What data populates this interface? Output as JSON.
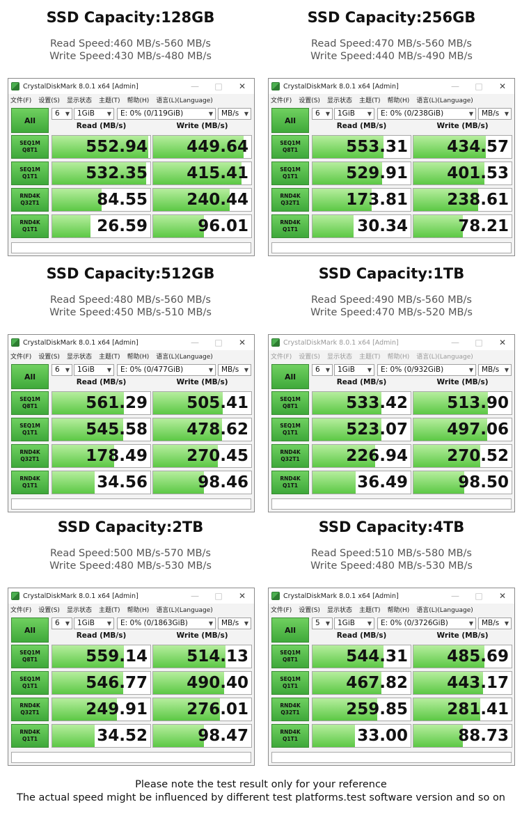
{
  "panels": [
    {
      "title": "SSD Capacity:128GB",
      "read": "Read Speed:460 MB/s-560 MB/s",
      "write": "Write Speed:430 MB/s-480 MB/s",
      "window": {
        "title": "CrystalDiskMark 8.0.1 x64 [Admin]",
        "active": true,
        "count": "6",
        "size": "1GiB",
        "drive": "E: 0% (0/119GiB)",
        "unit": "MB/s",
        "rows": [
          {
            "l1": "SEQ1M",
            "l2": "Q8T1",
            "read": "552.94",
            "write": "449.64",
            "rfill": 0.98,
            "wfill": 0.92
          },
          {
            "l1": "SEQ1M",
            "l2": "Q1T1",
            "read": "532.35",
            "write": "415.41",
            "rfill": 0.96,
            "wfill": 0.9
          },
          {
            "l1": "RND4K",
            "l2": "Q32T1",
            "read": "84.55",
            "write": "240.44",
            "rfill": 0.5,
            "wfill": 0.78
          },
          {
            "l1": "RND4K",
            "l2": "Q1T1",
            "read": "26.59",
            "write": "96.01",
            "rfill": 0.39,
            "wfill": 0.52
          }
        ]
      }
    },
    {
      "title": "SSD Capacity:256GB",
      "read": "Read Speed:470 MB/s-560 MB/s",
      "write": "Write Speed:440 MB/s-490 MB/s",
      "window": {
        "title": "CrystalDiskMark 8.0.1 x64 [Admin]",
        "active": true,
        "count": "6",
        "size": "1GiB",
        "drive": "E: 0% (0/238GiB)",
        "unit": "MB/s",
        "rows": [
          {
            "l1": "SEQ1M",
            "l2": "Q8T1",
            "read": "553.31",
            "write": "434.57",
            "rfill": 0.72,
            "wfill": 0.74
          },
          {
            "l1": "SEQ1M",
            "l2": "Q1T1",
            "read": "529.91",
            "write": "401.53",
            "rfill": 0.71,
            "wfill": 0.72
          },
          {
            "l1": "RND4K",
            "l2": "Q32T1",
            "read": "173.81",
            "write": "238.61",
            "rfill": 0.6,
            "wfill": 0.66
          },
          {
            "l1": "RND4K",
            "l2": "Q1T1",
            "read": "30.34",
            "write": "78.21",
            "rfill": 0.42,
            "wfill": 0.5
          }
        ]
      }
    },
    {
      "title": "SSD Capacity:512GB",
      "read": "Read Speed:480 MB/s-560 MB/s",
      "write": "Write Speed:450 MB/s-510 MB/s",
      "window": {
        "title": "CrystalDiskMark 8.0.1 x64 [Admin]",
        "active": true,
        "count": "6",
        "size": "1GiB",
        "drive": "E: 0% (0/477GiB)",
        "unit": "MB/s",
        "rows": [
          {
            "l1": "SEQ1M",
            "l2": "Q8T1",
            "read": "561.29",
            "write": "505.41",
            "rfill": 0.73,
            "wfill": 0.71
          },
          {
            "l1": "SEQ1M",
            "l2": "Q1T1",
            "read": "545.58",
            "write": "478.62",
            "rfill": 0.72,
            "wfill": 0.7
          },
          {
            "l1": "RND4K",
            "l2": "Q32T1",
            "read": "178.49",
            "write": "270.45",
            "rfill": 0.63,
            "wfill": 0.66
          },
          {
            "l1": "RND4K",
            "l2": "Q1T1",
            "read": "34.56",
            "write": "98.46",
            "rfill": 0.43,
            "wfill": 0.52
          }
        ]
      }
    },
    {
      "title": "SSD Capacity:1TB",
      "read": "Read Speed:490 MB/s-560 MB/s",
      "write": "Write Speed:470 MB/s-520 MB/s",
      "window": {
        "title": "CrystalDiskMark 8.0.1 x64 [Admin]",
        "active": false,
        "count": "6",
        "size": "1GiB",
        "drive": "E: 0% (0/932GiB)",
        "unit": "MB/s",
        "rows": [
          {
            "l1": "SEQ1M",
            "l2": "Q8T1",
            "read": "533.42",
            "write": "513.90",
            "rfill": 0.7,
            "wfill": 0.76
          },
          {
            "l1": "SEQ1M",
            "l2": "Q1T1",
            "read": "523.07",
            "write": "497.06",
            "rfill": 0.7,
            "wfill": 0.75
          },
          {
            "l1": "RND4K",
            "l2": "Q32T1",
            "read": "226.94",
            "write": "270.52",
            "rfill": 0.64,
            "wfill": 0.68
          },
          {
            "l1": "RND4K",
            "l2": "Q1T1",
            "read": "36.49",
            "write": "98.50",
            "rfill": 0.44,
            "wfill": 0.52
          }
        ]
      }
    },
    {
      "title": "SSD Capacity:2TB",
      "read": "Read Speed:500 MB/s-570 MB/s",
      "write": "Write Speed:480 MB/s-530 MB/s",
      "window": {
        "title": "CrystalDiskMark 8.0.1 x64 [Admin]",
        "active": true,
        "count": "6",
        "size": "1GiB",
        "drive": "E: 0% (0/1863GiB)",
        "unit": "MB/s",
        "rows": [
          {
            "l1": "SEQ1M",
            "l2": "Q8T1",
            "read": "559.14",
            "write": "514.13",
            "rfill": 0.73,
            "wfill": 0.74
          },
          {
            "l1": "SEQ1M",
            "l2": "Q1T1",
            "read": "546.77",
            "write": "490.40",
            "rfill": 0.72,
            "wfill": 0.72
          },
          {
            "l1": "RND4K",
            "l2": "Q32T1",
            "read": "249.91",
            "write": "276.01",
            "rfill": 0.66,
            "wfill": 0.68
          },
          {
            "l1": "RND4K",
            "l2": "Q1T1",
            "read": "34.52",
            "write": "98.47",
            "rfill": 0.43,
            "wfill": 0.52
          }
        ]
      }
    },
    {
      "title": "SSD Capacity:4TB",
      "read": "Read Speed:510 MB/s-580 MB/s",
      "write": "Write Speed:480 MB/s-530 MB/s",
      "window": {
        "title": "CrystalDiskMark 8.0.1 x64 [Admin]",
        "active": true,
        "count": "5",
        "size": "1GiB",
        "drive": "E: 0% (0/3726GiB)",
        "unit": "MB/s",
        "rows": [
          {
            "l1": "SEQ1M",
            "l2": "Q8T1",
            "read": "544.31",
            "write": "485.69",
            "rfill": 0.72,
            "wfill": 0.72
          },
          {
            "l1": "SEQ1M",
            "l2": "Q1T1",
            "read": "467.82",
            "write": "443.17",
            "rfill": 0.7,
            "wfill": 0.71
          },
          {
            "l1": "RND4K",
            "l2": "Q32T1",
            "read": "259.85",
            "write": "281.41",
            "rfill": 0.66,
            "wfill": 0.68
          },
          {
            "l1": "RND4K",
            "l2": "Q1T1",
            "read": "33.00",
            "write": "88.73",
            "rfill": 0.43,
            "wfill": 0.5
          }
        ]
      }
    }
  ],
  "menu": [
    "文件(F)",
    "设置(S)",
    "显示状态",
    "主题(T)",
    "帮助(H)",
    "语言(L)(Language)"
  ],
  "all_label": "All",
  "col_read": "Read (MB/s)",
  "col_write": "Write (MB/s)",
  "icons": {
    "minimize": "minimize-icon",
    "maximize": "maximize-icon",
    "close": "close-icon",
    "caret": "chevron-down-icon"
  },
  "footer": {
    "line1": "Please note the test result only for your reference",
    "line2": "The actual speed might be influenced by different test platforms.test software version and so on"
  }
}
